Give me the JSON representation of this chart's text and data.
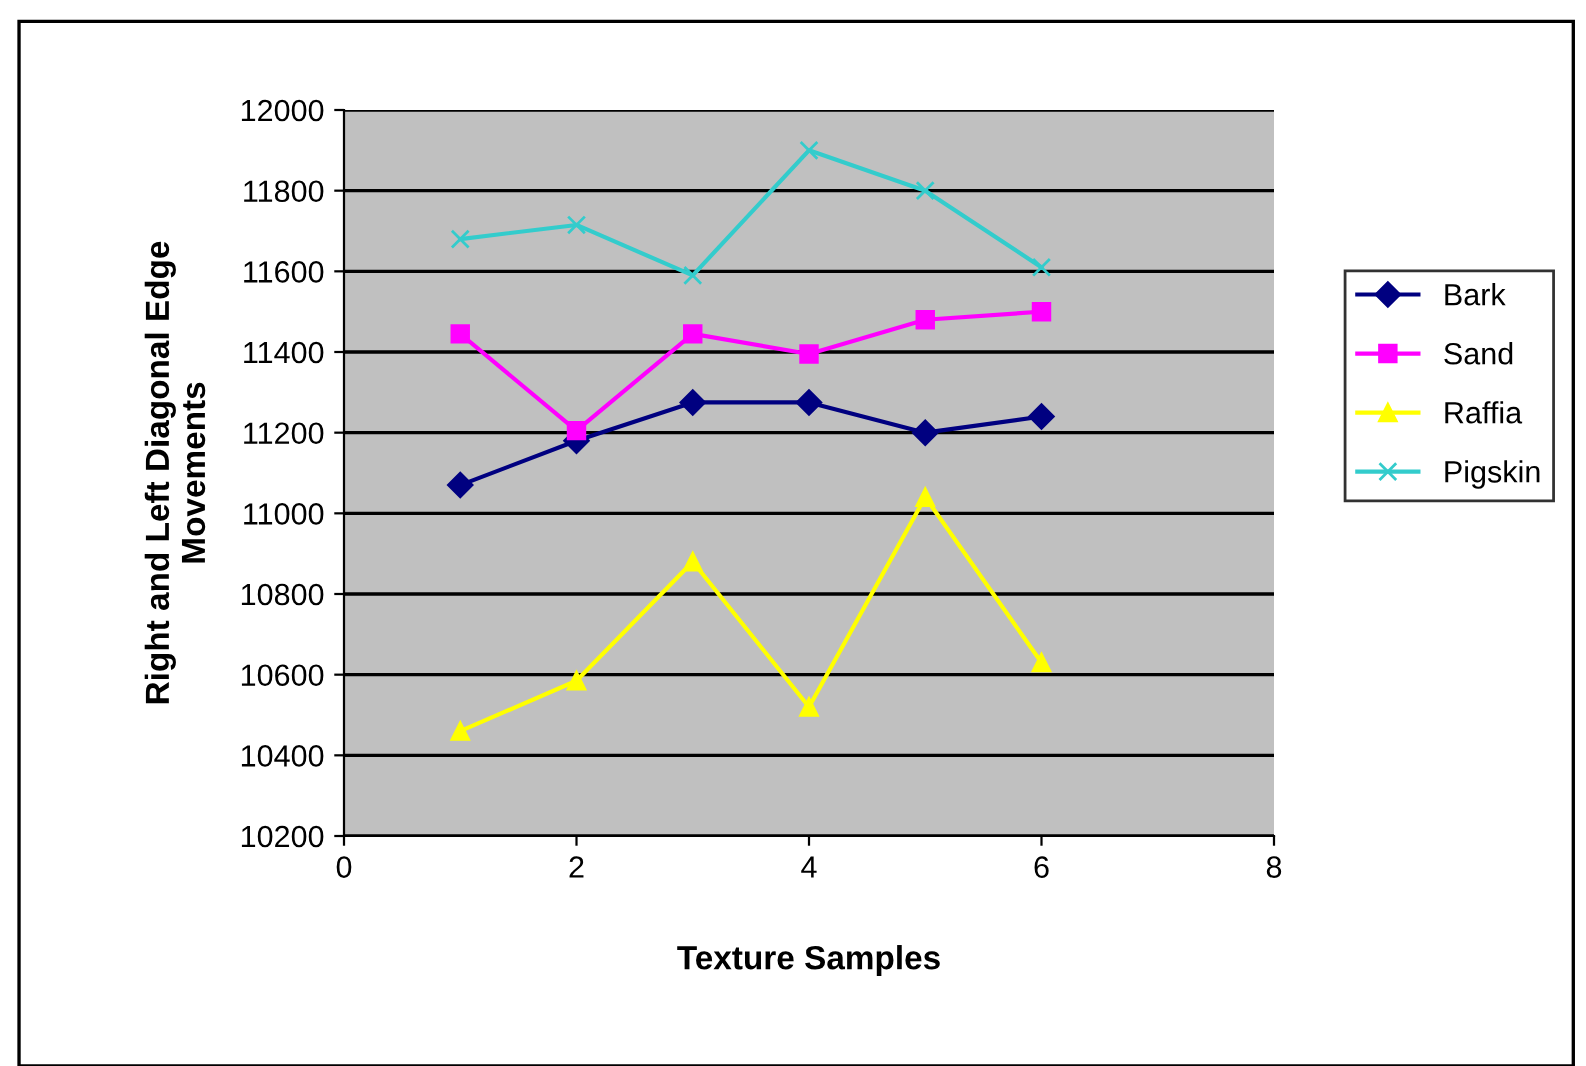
{
  "chart_data": {
    "type": "line",
    "xlabel": "Texture Samples",
    "ylabel": "Right and Left Diagonal Edge\nMovements",
    "x": [
      1,
      2,
      3,
      4,
      5,
      6
    ],
    "series": [
      {
        "name": "Bark",
        "color": "#000080",
        "marker": "diamond",
        "values": [
          11070,
          11180,
          11275,
          11275,
          11200,
          11240
        ]
      },
      {
        "name": "Sand",
        "color": "#ff00ff",
        "marker": "square",
        "values": [
          11445,
          11205,
          11445,
          11395,
          11480,
          11500
        ]
      },
      {
        "name": "Raffia",
        "color": "#ffff00",
        "marker": "triangle",
        "values": [
          10460,
          10585,
          10880,
          10520,
          11040,
          10630
        ]
      },
      {
        "name": "Pigskin",
        "color": "#33cccc",
        "marker": "cross",
        "values": [
          11680,
          11715,
          11590,
          11900,
          11800,
          11610
        ]
      }
    ],
    "xlim": [
      0,
      8
    ],
    "xticks": [
      0,
      2,
      4,
      6,
      8
    ],
    "ylim": [
      10200,
      12000
    ],
    "yticks": [
      10200,
      10400,
      10600,
      10800,
      11000,
      11200,
      11400,
      11600,
      11800,
      12000
    ],
    "grid": "y",
    "legend": "right"
  }
}
